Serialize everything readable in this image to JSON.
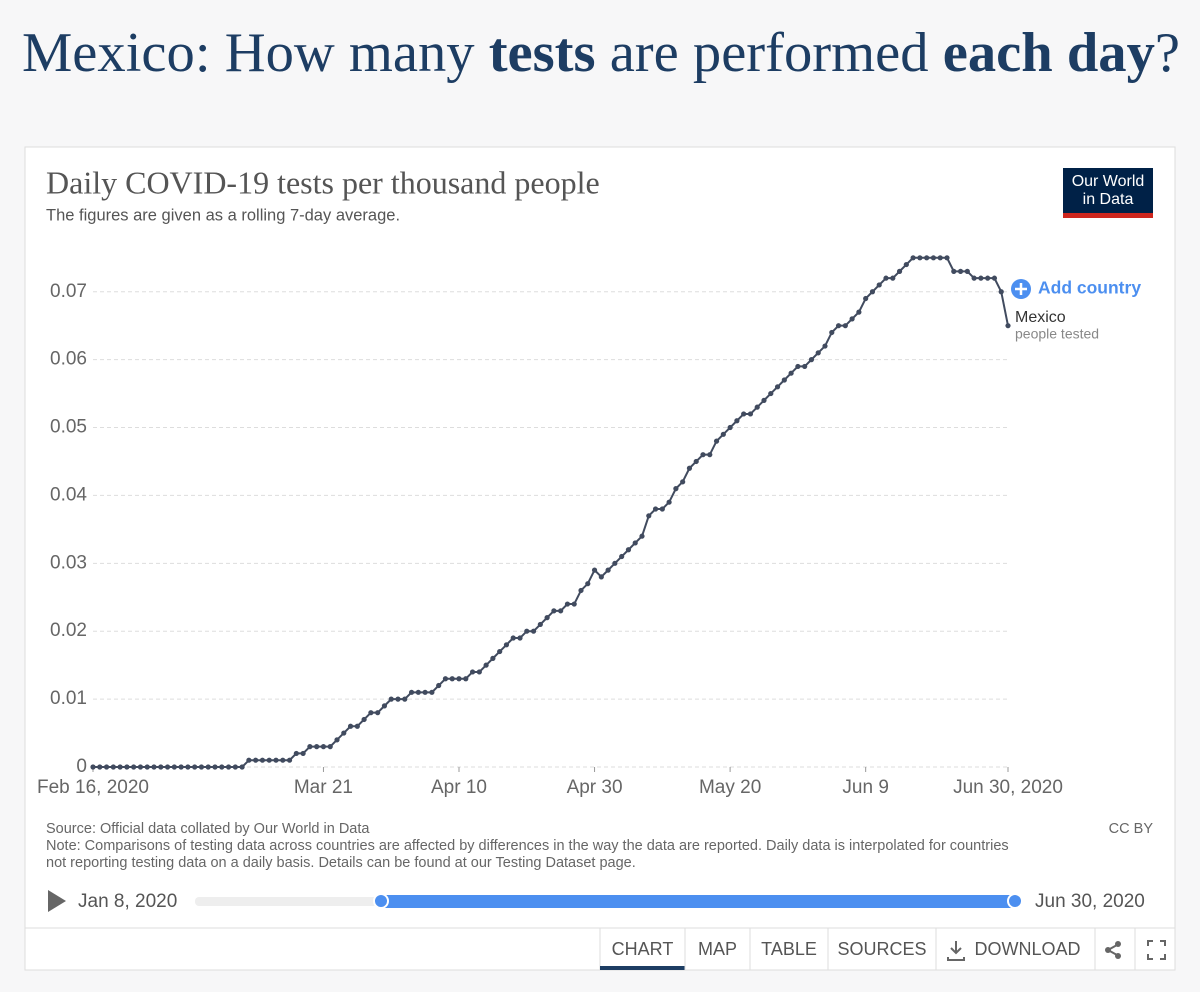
{
  "header": {
    "title_parts": [
      "Mexico: How many ",
      "tests",
      " are performed ",
      "each day",
      "?"
    ]
  },
  "logo": [
    "Our World",
    "in Data"
  ],
  "add_country": "Add country",
  "chart_data": {
    "type": "line",
    "title": "Daily COVID-19 tests per thousand people",
    "subtitle": "The figures are given as a rolling 7-day average.",
    "line_label_note": "people tested",
    "x": [
      "2020-02-16",
      "2020-02-17",
      "2020-02-18",
      "2020-02-19",
      "2020-02-20",
      "2020-02-21",
      "2020-02-22",
      "2020-02-23",
      "2020-02-24",
      "2020-02-25",
      "2020-02-26",
      "2020-02-27",
      "2020-02-28",
      "2020-02-29",
      "2020-03-01",
      "2020-03-02",
      "2020-03-03",
      "2020-03-04",
      "2020-03-05",
      "2020-03-06",
      "2020-03-07",
      "2020-03-08",
      "2020-03-09",
      "2020-03-10",
      "2020-03-11",
      "2020-03-12",
      "2020-03-13",
      "2020-03-14",
      "2020-03-15",
      "2020-03-16",
      "2020-03-17",
      "2020-03-18",
      "2020-03-19",
      "2020-03-20",
      "2020-03-21",
      "2020-03-22",
      "2020-03-23",
      "2020-03-24",
      "2020-03-25",
      "2020-03-26",
      "2020-03-27",
      "2020-03-28",
      "2020-03-29",
      "2020-03-30",
      "2020-03-31",
      "2020-04-01",
      "2020-04-02",
      "2020-04-03",
      "2020-04-04",
      "2020-04-05",
      "2020-04-06",
      "2020-04-07",
      "2020-04-08",
      "2020-04-09",
      "2020-04-10",
      "2020-04-11",
      "2020-04-12",
      "2020-04-13",
      "2020-04-14",
      "2020-04-15",
      "2020-04-16",
      "2020-04-17",
      "2020-04-18",
      "2020-04-19",
      "2020-04-20",
      "2020-04-21",
      "2020-04-22",
      "2020-04-23",
      "2020-04-24",
      "2020-04-25",
      "2020-04-26",
      "2020-04-27",
      "2020-04-28",
      "2020-04-29",
      "2020-04-30",
      "2020-05-01",
      "2020-05-02",
      "2020-05-03",
      "2020-05-04",
      "2020-05-05",
      "2020-05-06",
      "2020-05-07",
      "2020-05-08",
      "2020-05-09",
      "2020-05-10",
      "2020-05-11",
      "2020-05-12",
      "2020-05-13",
      "2020-05-14",
      "2020-05-15",
      "2020-05-16",
      "2020-05-17",
      "2020-05-18",
      "2020-05-19",
      "2020-05-20",
      "2020-05-21",
      "2020-05-22",
      "2020-05-23",
      "2020-05-24",
      "2020-05-25",
      "2020-05-26",
      "2020-05-27",
      "2020-05-28",
      "2020-05-29",
      "2020-05-30",
      "2020-05-31",
      "2020-06-01",
      "2020-06-02",
      "2020-06-03",
      "2020-06-04",
      "2020-06-05",
      "2020-06-06",
      "2020-06-07",
      "2020-06-08",
      "2020-06-09",
      "2020-06-10",
      "2020-06-11",
      "2020-06-12",
      "2020-06-13",
      "2020-06-14",
      "2020-06-15",
      "2020-06-16",
      "2020-06-17",
      "2020-06-18",
      "2020-06-19",
      "2020-06-20",
      "2020-06-21",
      "2020-06-22",
      "2020-06-23",
      "2020-06-24",
      "2020-06-25",
      "2020-06-26",
      "2020-06-27",
      "2020-06-28",
      "2020-06-29",
      "2020-06-30"
    ],
    "series": [
      {
        "name": "Mexico",
        "color": "#414b5f",
        "values": [
          0,
          0,
          0,
          0,
          0,
          0,
          0,
          0,
          0,
          0,
          0,
          0,
          0,
          0,
          0,
          0,
          0,
          0,
          0,
          0,
          0,
          0,
          0,
          0.001,
          0.001,
          0.001,
          0.001,
          0.001,
          0.001,
          0.001,
          0.002,
          0.002,
          0.003,
          0.003,
          0.003,
          0.003,
          0.004,
          0.005,
          0.006,
          0.006,
          0.007,
          0.008,
          0.008,
          0.009,
          0.01,
          0.01,
          0.01,
          0.011,
          0.011,
          0.011,
          0.011,
          0.012,
          0.013,
          0.013,
          0.013,
          0.013,
          0.014,
          0.014,
          0.015,
          0.016,
          0.017,
          0.018,
          0.019,
          0.019,
          0.02,
          0.02,
          0.021,
          0.022,
          0.023,
          0.023,
          0.024,
          0.024,
          0.026,
          0.027,
          0.029,
          0.028,
          0.029,
          0.03,
          0.031,
          0.032,
          0.033,
          0.034,
          0.037,
          0.038,
          0.038,
          0.039,
          0.041,
          0.042,
          0.044,
          0.045,
          0.046,
          0.046,
          0.048,
          0.049,
          0.05,
          0.051,
          0.052,
          0.052,
          0.053,
          0.054,
          0.055,
          0.056,
          0.057,
          0.058,
          0.059,
          0.059,
          0.06,
          0.061,
          0.062,
          0.064,
          0.065,
          0.065,
          0.066,
          0.067,
          0.069,
          0.07,
          0.071,
          0.072,
          0.072,
          0.073,
          0.074,
          0.075,
          0.075,
          0.075,
          0.075,
          0.075,
          0.075,
          0.073,
          0.073,
          0.073,
          0.072,
          0.072,
          0.072,
          0.072,
          0.07,
          0.065
        ]
      }
    ],
    "xlim": [
      "2020-02-16",
      "2020-06-30"
    ],
    "xticks": [
      {
        "value": "2020-02-16",
        "label": "Feb 16, 2020"
      },
      {
        "value": "2020-03-21",
        "label": "Mar 21"
      },
      {
        "value": "2020-04-10",
        "label": "Apr 10"
      },
      {
        "value": "2020-04-30",
        "label": "Apr 30"
      },
      {
        "value": "2020-05-20",
        "label": "May 20"
      },
      {
        "value": "2020-06-09",
        "label": "Jun 9"
      },
      {
        "value": "2020-06-30",
        "label": "Jun 30, 2020"
      }
    ],
    "ylim": [
      0,
      0.076
    ],
    "yticks": [
      0,
      0.01,
      0.02,
      0.03,
      0.04,
      0.05,
      0.06,
      0.07
    ],
    "grid": true,
    "source": "Source: Official data collated by Our World in Data",
    "license": "CC BY",
    "note_lines": [
      "Note: Comparisons of testing data across countries are affected by differences in the way the data are reported. Daily data is interpolated for countries",
      "not reporting testing data on a daily basis. Details can be found at our Testing Dataset page."
    ]
  },
  "timeline": {
    "start": "Jan 8, 2020",
    "end": "Jun 30, 2020"
  },
  "tabs": [
    "CHART",
    "MAP",
    "TABLE",
    "SOURCES",
    "DOWNLOAD"
  ]
}
